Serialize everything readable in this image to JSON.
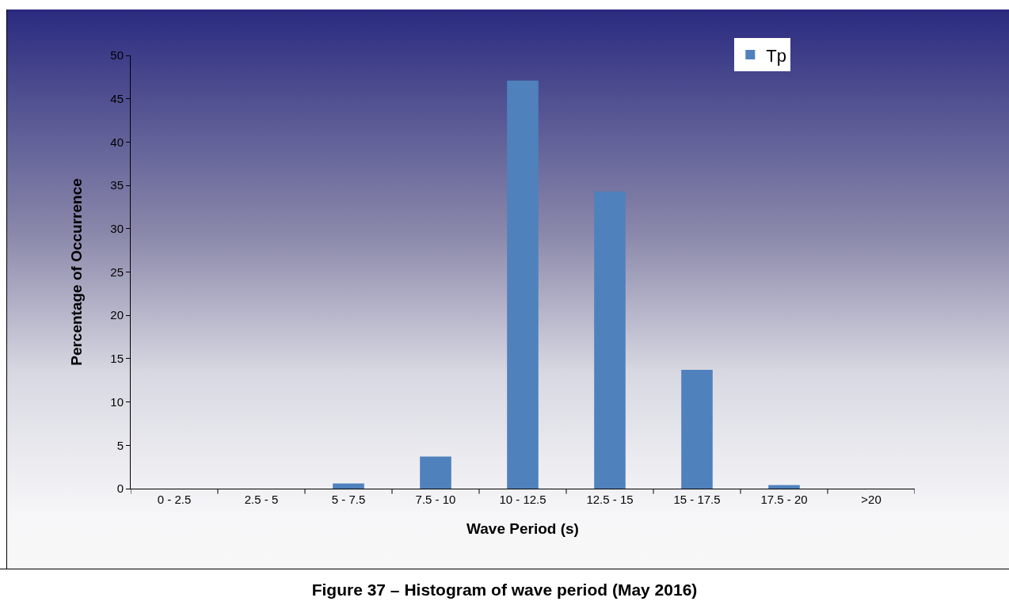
{
  "chart_data": {
    "type": "bar",
    "title": "Figure 37 – Histogram of wave period (May 2016)",
    "xlabel": "Wave Period (s)",
    "ylabel": "Percentage of Occurrence",
    "categories": [
      "0 - 2.5",
      "2.5 - 5",
      "5 - 7.5",
      "7.5 - 10",
      "10 - 12.5",
      "12.5 - 15",
      "15 - 17.5",
      "17.5 - 20",
      ">20"
    ],
    "series": [
      {
        "name": "Tp",
        "color": "#4f81bd",
        "values": [
          0,
          0,
          0.6,
          3.7,
          47.1,
          34.3,
          13.7,
          0.4,
          0
        ]
      }
    ],
    "ylim": [
      0,
      50
    ],
    "yticks": [
      0,
      5,
      10,
      15,
      20,
      25,
      30,
      35,
      40,
      45,
      50
    ],
    "grid": false,
    "legend": "top right"
  }
}
